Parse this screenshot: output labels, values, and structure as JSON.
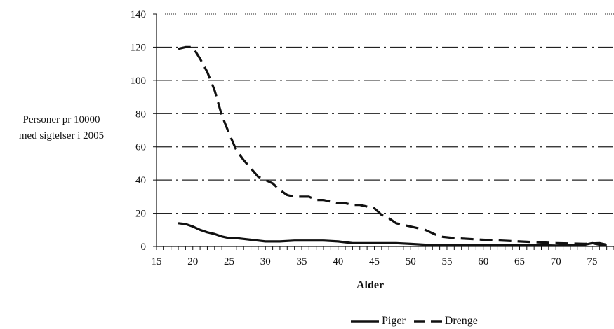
{
  "chart_data": {
    "type": "line",
    "title": "",
    "ylabel_line1": "Personer pr 10000",
    "ylabel_line2": "med sigtelser i 2005",
    "xlabel": "Alder",
    "xlim": [
      15,
      78
    ],
    "ylim": [
      0,
      140
    ],
    "xticks": [
      15,
      20,
      25,
      30,
      35,
      40,
      45,
      50,
      55,
      60,
      65,
      70,
      75
    ],
    "yticks": [
      0,
      20,
      40,
      60,
      80,
      100,
      120,
      140
    ],
    "grid": "horizontal dash-dot",
    "legend": "bottom",
    "series": [
      {
        "name": "Piger",
        "style": "solid",
        "color": "#111111",
        "x": [
          18,
          19,
          20,
          21,
          22,
          23,
          24,
          25,
          26,
          27,
          28,
          29,
          30,
          32,
          34,
          36,
          38,
          40,
          42,
          44,
          46,
          48,
          50,
          52,
          55,
          60,
          65,
          70,
          72,
          74,
          75,
          76,
          77
        ],
        "y": [
          14,
          13.5,
          12,
          10,
          8.5,
          7.5,
          6,
          5,
          5,
          4.5,
          4,
          3.5,
          3,
          3,
          3.5,
          3.5,
          3.5,
          3,
          2,
          2,
          2,
          2,
          1.5,
          1,
          1,
          1,
          1,
          0.5,
          1,
          1,
          2,
          1,
          0.5
        ]
      },
      {
        "name": "Drenge",
        "style": "dashed",
        "color": "#111111",
        "x": [
          18,
          19,
          20,
          21,
          22,
          23,
          24,
          25,
          26,
          27,
          28,
          29,
          30,
          31,
          32,
          33,
          34,
          35,
          36,
          37,
          38,
          39,
          40,
          41,
          42,
          43,
          44,
          45,
          46,
          47,
          48,
          50,
          52,
          54,
          56,
          60,
          65,
          70,
          74,
          76,
          77
        ],
        "y": [
          119,
          120,
          120,
          113,
          105,
          94,
          79,
          68,
          58,
          52,
          47,
          42,
          40,
          38,
          34,
          31,
          30,
          30,
          30,
          28,
          28,
          27,
          26,
          26,
          25,
          25,
          24,
          23,
          19,
          17,
          14,
          12,
          10,
          6,
          5,
          4,
          3,
          2,
          1.5,
          2,
          1
        ]
      }
    ]
  }
}
